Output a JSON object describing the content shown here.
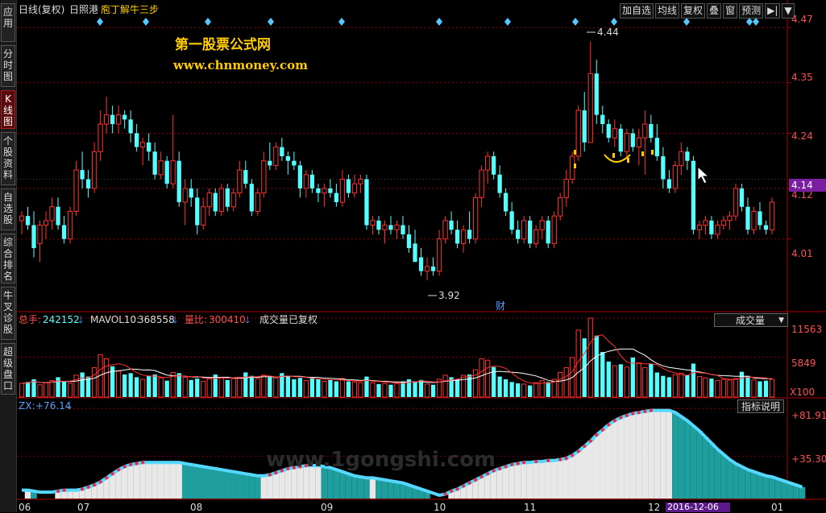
{
  "header": {
    "period": "日线(复权)",
    "stock": "日照港",
    "formula": "庖丁解牛三步"
  },
  "sidebar": [
    {
      "label": "应用",
      "active": false
    },
    {
      "label": "分时图",
      "active": false
    },
    {
      "label": "K线图",
      "active": true
    },
    {
      "label": "个股资料",
      "active": false
    },
    {
      "label": "自选股",
      "active": false
    },
    {
      "label": "综合排名",
      "active": false
    },
    {
      "label": "牛叉诊股",
      "active": false
    },
    {
      "label": "超级盘口",
      "active": false
    }
  ],
  "toolbar": [
    "加自选",
    "均线",
    "复权",
    "叠",
    "窗",
    "预测",
    "▶|",
    "▼"
  ],
  "watermark": {
    "line1": "第一股票公式网",
    "line2": "www.chnmoney.com",
    "faint": "www.1gongshi.com"
  },
  "price_axis": [
    "4.47",
    "4.35",
    "4.24",
    "4.12",
    "4.01"
  ],
  "current_price": "4.14",
  "annotations": {
    "high": "4.44",
    "low": "3.92",
    "cai": "财"
  },
  "volume_header": {
    "total_label": "总手:",
    "total_value": "242152",
    "mavol_label": "MAVOL10:",
    "mavol_value": "368558",
    "ratio_label": "量比:",
    "ratio_value": "300410",
    "note": "成交量已复权",
    "select": "成交量"
  },
  "volume_axis": [
    "11563",
    "5849"
  ],
  "volume_unit": "X100",
  "indicator": {
    "label": "ZX:",
    "value": "+76.14",
    "button": "指标说明",
    "axis": [
      "+81.91",
      "+35.30"
    ]
  },
  "date_axis": [
    "06",
    "07",
    "08",
    "09",
    "10",
    "11",
    "12",
    "01"
  ],
  "cursor_date": "2016-12-06",
  "colors": {
    "up": "#ff3232",
    "down": "#54ffff",
    "grid": "#8b0000",
    "purple": "#7a1fa2",
    "yellow": "#ffcc00",
    "ma": "#ffffff"
  },
  "chart_data": {
    "type": "candlestick",
    "ohlc": [
      [
        4.05,
        4.07,
        4.02,
        4.06
      ],
      [
        4.06,
        4.08,
        4.03,
        4.04
      ],
      [
        4.04,
        4.07,
        3.97,
        3.99
      ],
      [
        4.0,
        4.05,
        3.96,
        4.04
      ],
      [
        4.04,
        4.07,
        4.01,
        4.05
      ],
      [
        4.05,
        4.1,
        4.03,
        4.08
      ],
      [
        4.08,
        4.1,
        4.03,
        4.04
      ],
      [
        4.04,
        4.06,
        4.0,
        4.01
      ],
      [
        4.01,
        4.08,
        4.0,
        4.07
      ],
      [
        4.07,
        4.18,
        4.06,
        4.16
      ],
      [
        4.16,
        4.2,
        4.12,
        4.14
      ],
      [
        4.14,
        4.16,
        4.1,
        4.12
      ],
      [
        4.12,
        4.22,
        4.11,
        4.2
      ],
      [
        4.2,
        4.29,
        4.18,
        4.26
      ],
      [
        4.26,
        4.32,
        4.24,
        4.28
      ],
      [
        4.28,
        4.3,
        4.24,
        4.26
      ],
      [
        4.26,
        4.3,
        4.24,
        4.28
      ],
      [
        4.28,
        4.29,
        4.25,
        4.27
      ],
      [
        4.27,
        4.29,
        4.22,
        4.24
      ],
      [
        4.24,
        4.26,
        4.2,
        4.21
      ],
      [
        4.21,
        4.23,
        4.17,
        4.22
      ],
      [
        4.22,
        4.24,
        4.18,
        4.2
      ],
      [
        4.2,
        4.22,
        4.14,
        4.15
      ],
      [
        4.15,
        4.2,
        4.14,
        4.18
      ],
      [
        4.18,
        4.19,
        4.12,
        4.13
      ],
      [
        4.13,
        4.28,
        4.12,
        4.18
      ],
      [
        4.18,
        4.2,
        4.08,
        4.09
      ],
      [
        4.09,
        4.14,
        4.04,
        4.12
      ],
      [
        4.12,
        4.14,
        4.08,
        4.1
      ],
      [
        4.1,
        4.12,
        4.02,
        4.04
      ],
      [
        4.04,
        4.1,
        4.03,
        4.08
      ],
      [
        4.08,
        4.12,
        4.06,
        4.11
      ],
      [
        4.11,
        4.12,
        4.06,
        4.07
      ],
      [
        4.07,
        4.13,
        4.06,
        4.12
      ],
      [
        4.12,
        4.13,
        4.07,
        4.08
      ],
      [
        4.08,
        4.12,
        4.07,
        4.11
      ],
      [
        4.11,
        4.18,
        4.1,
        4.16
      ],
      [
        4.16,
        4.18,
        4.12,
        4.13
      ],
      [
        4.13,
        4.14,
        4.06,
        4.07
      ],
      [
        4.07,
        4.12,
        4.06,
        4.11
      ],
      [
        4.11,
        4.2,
        4.1,
        4.18
      ],
      [
        4.18,
        4.22,
        4.16,
        4.17
      ],
      [
        4.17,
        4.22,
        4.16,
        4.21
      ],
      [
        4.21,
        4.23,
        4.18,
        4.19
      ],
      [
        4.19,
        4.2,
        4.15,
        4.18
      ],
      [
        4.18,
        4.2,
        4.16,
        4.17
      ],
      [
        4.17,
        4.18,
        4.1,
        4.12
      ],
      [
        4.12,
        4.16,
        4.1,
        4.15
      ],
      [
        4.15,
        4.16,
        4.11,
        4.12
      ],
      [
        4.12,
        4.13,
        4.09,
        4.11
      ],
      [
        4.11,
        4.13,
        4.08,
        4.12
      ],
      [
        4.12,
        4.14,
        4.1,
        4.11
      ],
      [
        4.11,
        4.13,
        4.08,
        4.09
      ],
      [
        4.09,
        4.16,
        4.08,
        4.14
      ],
      [
        4.14,
        4.15,
        4.1,
        4.11
      ],
      [
        4.11,
        4.15,
        4.1,
        4.13
      ],
      [
        4.13,
        4.15,
        4.11,
        4.14
      ],
      [
        4.14,
        4.15,
        4.03,
        4.04
      ],
      [
        4.04,
        4.06,
        4.02,
        4.05
      ],
      [
        4.05,
        4.06,
        4.02,
        4.03
      ],
      [
        4.03,
        4.05,
        4.0,
        4.04
      ],
      [
        4.04,
        4.06,
        4.02,
        4.03
      ],
      [
        4.03,
        4.05,
        4.01,
        4.04
      ],
      [
        4.04,
        4.06,
        4.01,
        4.02
      ],
      [
        4.02,
        4.04,
        3.98,
        3.99
      ],
      [
        4.0,
        4.03,
        3.96,
        3.96
      ],
      [
        3.97,
        3.99,
        3.93,
        3.94
      ],
      [
        3.94,
        3.97,
        3.92,
        3.95
      ],
      [
        3.95,
        3.97,
        3.93,
        3.94
      ],
      [
        3.94,
        4.03,
        3.93,
        4.01
      ],
      [
        4.01,
        4.06,
        4.0,
        4.05
      ],
      [
        4.05,
        4.07,
        4.02,
        4.03
      ],
      [
        4.03,
        4.05,
        3.99,
        4.0
      ],
      [
        4.0,
        4.04,
        3.98,
        4.03
      ],
      [
        4.03,
        4.07,
        4.0,
        4.01
      ],
      [
        4.01,
        4.11,
        4.0,
        4.1
      ],
      [
        4.1,
        4.17,
        4.08,
        4.16
      ],
      [
        4.16,
        4.2,
        4.13,
        4.19
      ],
      [
        4.19,
        4.2,
        4.14,
        4.15
      ],
      [
        4.15,
        4.17,
        4.1,
        4.11
      ],
      [
        4.11,
        4.12,
        4.06,
        4.07
      ],
      [
        4.07,
        4.09,
        4.02,
        4.03
      ],
      [
        4.03,
        4.05,
        4.0,
        4.01
      ],
      [
        4.01,
        4.06,
        4.0,
        4.05
      ],
      [
        4.05,
        4.06,
        3.99,
        4.0
      ],
      [
        4.0,
        4.04,
        3.99,
        4.03
      ],
      [
        4.03,
        4.06,
        4.01,
        4.05
      ],
      [
        4.05,
        4.06,
        3.99,
        4.0
      ],
      [
        4.0,
        4.07,
        3.99,
        4.06
      ],
      [
        4.06,
        4.11,
        4.05,
        4.1
      ],
      [
        4.1,
        4.16,
        4.08,
        4.14
      ],
      [
        4.14,
        4.2,
        4.13,
        4.19
      ],
      [
        4.19,
        4.3,
        4.18,
        4.29
      ],
      [
        4.29,
        4.33,
        4.2,
        4.22
      ],
      [
        4.22,
        4.44,
        4.22,
        4.37
      ],
      [
        4.37,
        4.4,
        4.26,
        4.28
      ],
      [
        4.28,
        4.3,
        4.24,
        4.26
      ],
      [
        4.26,
        4.27,
        4.22,
        4.23
      ],
      [
        4.23,
        4.27,
        4.21,
        4.25
      ],
      [
        4.25,
        4.26,
        4.19,
        4.2
      ],
      [
        4.2,
        4.25,
        4.19,
        4.24
      ],
      [
        4.24,
        4.25,
        4.2,
        4.21
      ],
      [
        4.21,
        4.25,
        4.17,
        4.23
      ],
      [
        4.23,
        4.29,
        4.15,
        4.26
      ],
      [
        4.26,
        4.28,
        4.22,
        4.23
      ],
      [
        4.23,
        4.26,
        4.18,
        4.19
      ],
      [
        4.19,
        4.21,
        4.12,
        4.14
      ],
      [
        4.14,
        4.16,
        4.11,
        4.12
      ],
      [
        4.12,
        4.18,
        4.11,
        4.17
      ],
      [
        4.17,
        4.22,
        4.15,
        4.2
      ],
      [
        4.2,
        4.21,
        4.16,
        4.18
      ],
      [
        4.18,
        4.19,
        4.02,
        4.03
      ],
      [
        4.03,
        4.05,
        4.01,
        4.04
      ],
      [
        4.04,
        4.06,
        4.02,
        4.05
      ],
      [
        4.05,
        4.06,
        4.01,
        4.02
      ],
      [
        4.02,
        4.05,
        4.01,
        4.04
      ],
      [
        4.04,
        4.06,
        4.03,
        4.05
      ],
      [
        4.05,
        4.07,
        4.03,
        4.06
      ],
      [
        4.06,
        4.13,
        4.05,
        4.12
      ],
      [
        4.12,
        4.13,
        4.07,
        4.08
      ],
      [
        4.08,
        4.1,
        4.02,
        4.03
      ],
      [
        4.03,
        4.08,
        4.02,
        4.07
      ],
      [
        4.07,
        4.09,
        4.03,
        4.04
      ],
      [
        4.04,
        4.05,
        4.02,
        4.03
      ],
      [
        4.03,
        4.1,
        4.02,
        4.09
      ]
    ],
    "volume_axis_max": 11563,
    "volume": [
      2000,
      2200,
      2600,
      1800,
      2100,
      2400,
      2900,
      2300,
      2000,
      3200,
      3600,
      3000,
      4300,
      6200,
      5600,
      4500,
      3800,
      3300,
      3500,
      2900,
      2600,
      3100,
      3300,
      2800,
      2400,
      3600,
      3500,
      2900,
      2500,
      2700,
      2300,
      2800,
      3300,
      2900,
      2500,
      2700,
      2900,
      3600,
      3100,
      2700,
      3200,
      2900,
      2800,
      3500,
      3100,
      2600,
      2800,
      2400,
      2900,
      2600,
      2300,
      2500,
      2300,
      2700,
      2300,
      2200,
      2100,
      3000,
      2100,
      1900,
      2000,
      1800,
      2100,
      2300,
      2600,
      2300,
      2500,
      1900,
      1800,
      2600,
      3200,
      2900,
      2600,
      3200,
      3300,
      4000,
      5600,
      5400,
      4400,
      3000,
      2600,
      2200,
      2000,
      1900,
      1700,
      2100,
      2400,
      2200,
      2600,
      3600,
      4300,
      5800,
      9800,
      8600,
      11563,
      9000,
      6600,
      5200,
      4600,
      4800,
      4400,
      5800,
      5000,
      4300,
      4900,
      3600,
      3100,
      2900,
      3300,
      3500,
      3200,
      4900,
      3000,
      2800,
      2700,
      2400,
      2600,
      2500,
      2700,
      3700,
      3100,
      2500,
      2300,
      2400,
      2600
    ],
    "zx": [
      2,
      2,
      1,
      0,
      0,
      0,
      1,
      2,
      2,
      2,
      3,
      5,
      7,
      10,
      14,
      18,
      22,
      25,
      27,
      28,
      29,
      29,
      29,
      29,
      29,
      29,
      29,
      28,
      27,
      26,
      25,
      24,
      23,
      22,
      21,
      20,
      19,
      18,
      17,
      16,
      16,
      17,
      19,
      21,
      23,
      24,
      25,
      26,
      26,
      26,
      25,
      24,
      22,
      20,
      18,
      16,
      15,
      14,
      14,
      13,
      12,
      11,
      10,
      9,
      7,
      5,
      3,
      1,
      -1,
      -3,
      -2,
      1,
      3,
      6,
      9,
      12,
      15,
      18,
      21,
      23,
      25,
      27,
      28,
      29,
      29,
      30,
      30,
      31,
      31,
      32,
      33,
      36,
      40,
      45,
      50,
      56,
      61,
      66,
      70,
      73,
      75,
      77,
      78,
      79,
      80,
      80,
      80,
      80,
      78,
      74,
      70,
      65,
      60,
      54,
      48,
      42,
      37,
      32,
      28,
      25,
      22,
      20,
      18,
      16,
      15,
      13,
      11,
      9,
      7,
      5
    ]
  }
}
